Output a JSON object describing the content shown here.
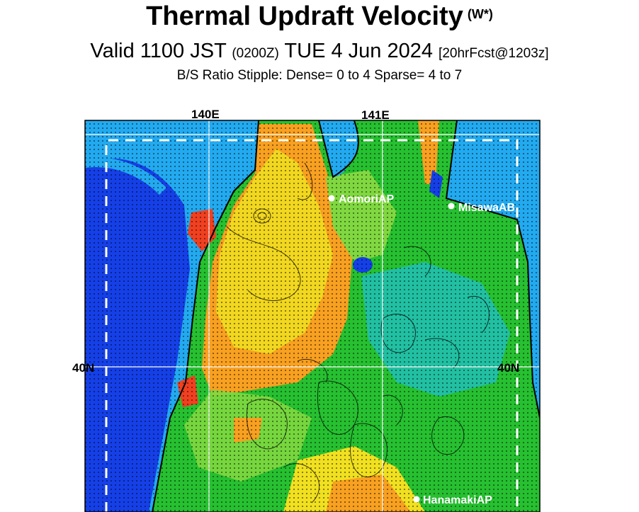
{
  "header": {
    "title": "Thermal Updraft Velocity",
    "title_symbol": "(W*)",
    "valid_main": "Valid 1100 JST",
    "valid_utc": "(0200Z)",
    "valid_date": "TUE 4 Jun 2024",
    "valid_fcst": "[20hrFcst@1203z]",
    "stipple_label": "B/S Ratio Stipple:  Dense= 0 to 4  Sparse= 4 to 7"
  },
  "map": {
    "lon_labels": [
      "140E",
      "141E"
    ],
    "lat_labels": [
      "40N",
      "40N"
    ],
    "cities": [
      "AomoriAP",
      "MisawaAB",
      "HanamakiAP"
    ],
    "colors": {
      "sea_light": "#22aaf0",
      "sea_dark": "#1540e8",
      "land_green": "#26c030",
      "land_lightgreen": "#80d840",
      "land_yellow": "#f0e020",
      "land_orange": "#f8a020",
      "land_red": "#f04020",
      "land_cyan": "#20c0c8"
    }
  }
}
